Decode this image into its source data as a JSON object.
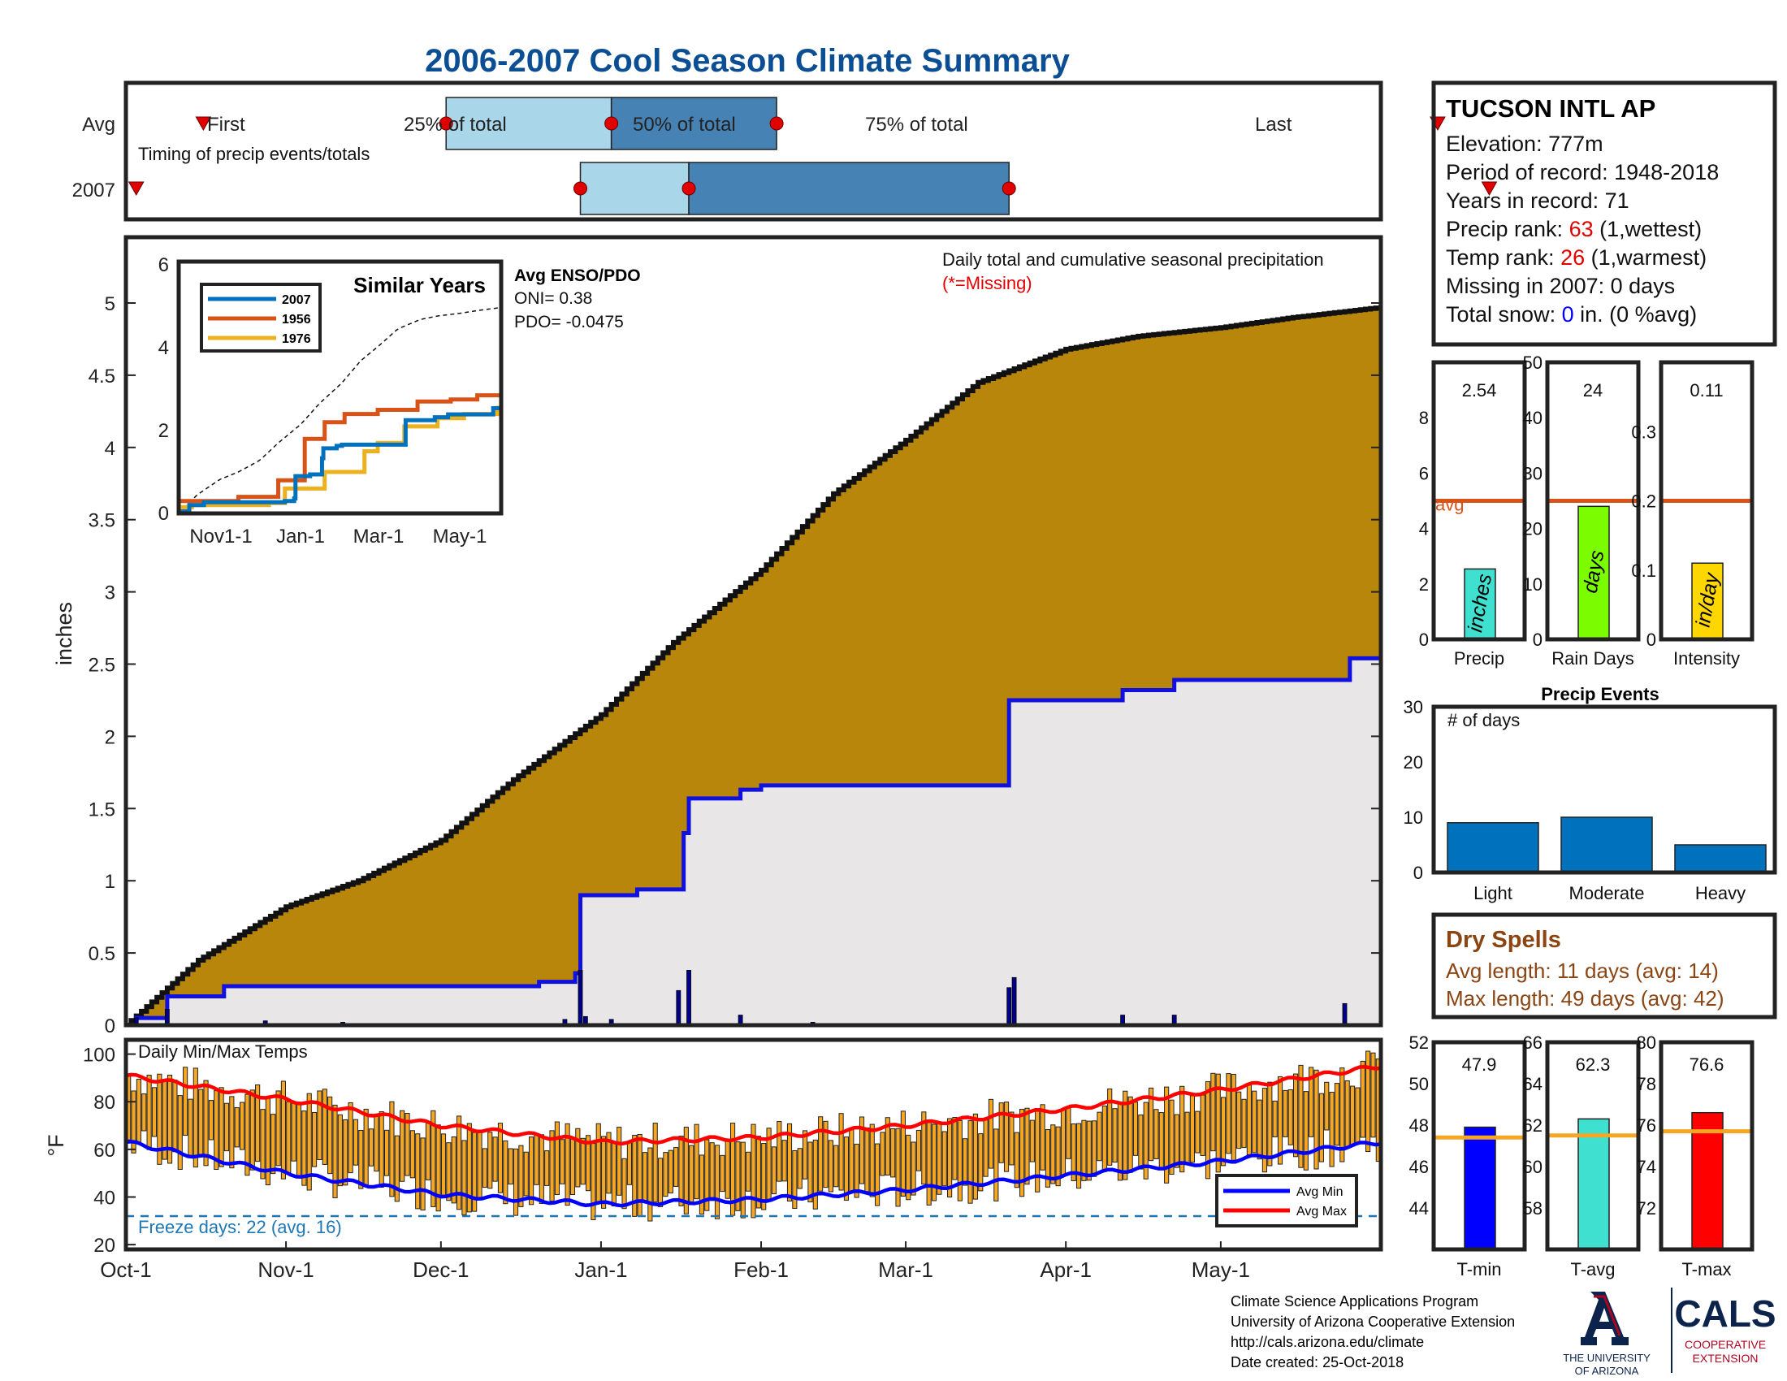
{
  "title": "2006-2007 Cool Season Climate Summary",
  "colors": {
    "title": "#0b4e94",
    "cum_2007_fill": "#e8e6e6",
    "cum_avg_fill": "#b8860b",
    "line_2007": "#1010e0",
    "temp_bar": "#f5a623",
    "avg_min": "#0000ff",
    "avg_max": "#ff0000",
    "freeze_line": "#1f77b4",
    "light_blue": "#a9d6e8",
    "steel_blue": "#4682b4",
    "marker_red": "#e00000",
    "avg_line": "#d95319"
  },
  "timing": {
    "row_labels": [
      "Avg",
      "2007"
    ],
    "first_label": "First",
    "last_label": "Last",
    "pct25_label": "25% of total",
    "pct50_label": "50% of total",
    "pct75_label": "75% of total",
    "caption": "Timing of precip events/totals",
    "avg": {
      "first": "Oct-16",
      "p25": "Dec-02",
      "p50": "Jan-03",
      "p75": "Feb-04",
      "last": "Jun-12"
    },
    "y2007": {
      "first": "Oct-03",
      "p25": "Dec-28",
      "p50": "Jan-18",
      "p75": "Mar-21",
      "last": "Jun-22"
    }
  },
  "main": {
    "annotation": "Daily total and cumulative seasonal precipitation",
    "missing_note": "(*=Missing)",
    "ylabel": "inches",
    "yticks": [
      "0",
      "0.5",
      "1",
      "1.5",
      "2",
      "2.5",
      "3",
      "3.5",
      "4",
      "4.5",
      "5"
    ]
  },
  "months": [
    "Oct-1",
    "Nov-1",
    "Dec-1",
    "Jan-1",
    "Feb-1",
    "Mar-1",
    "Apr-1",
    "May-1"
  ],
  "inset": {
    "title": "Similar Years",
    "legend": [
      "2007",
      "1956",
      "1976"
    ],
    "colors": [
      "#0072bd",
      "#d95319",
      "#edb120"
    ],
    "xticks": [
      "Nov1-1",
      "Jan-1",
      "Mar-1",
      "May-1"
    ],
    "yticks": [
      "0",
      "2",
      "4",
      "6"
    ],
    "enso_title": "Avg ENSO/PDO",
    "oni": "ONI= 0.38",
    "pdo": "PDO= -0.0475"
  },
  "temps": {
    "label": "Daily Min/Max Temps",
    "ylabel": "°F",
    "yticks": [
      "20",
      "40",
      "60",
      "80",
      "100"
    ],
    "freeze_text": "Freeze days: 22 (avg. 16)",
    "legend_min": "Avg Min",
    "legend_max": "Avg Max"
  },
  "station": {
    "name": "TUCSON INTL AP",
    "elevation": "Elevation: 777m",
    "period": "Period of record: 1948-2018",
    "years": "Years in record: 71",
    "precip_rank_label": "Precip rank: ",
    "precip_rank": "63",
    "precip_rank_tail": " (1,wettest)",
    "temp_rank_label": "Temp rank: ",
    "temp_rank": "26",
    "temp_rank_tail": " (1,warmest)",
    "missing": "Missing in 2007: 0 days",
    "snow_label": "Total snow: ",
    "snow_value": "0",
    "snow_tail": " in. (0 %avg)"
  },
  "precip_panels": [
    {
      "value_text": "2.54",
      "value": 2.54,
      "avg": 5.0,
      "ymax": 10,
      "yticks": [
        "0",
        "2",
        "4",
        "6",
        "8"
      ],
      "unit": "inches",
      "label": "Precip",
      "color": "#40e0d0",
      "avg_label": "avg"
    },
    {
      "value_text": "24",
      "value": 24,
      "avg": 25,
      "ymax": 50,
      "yticks": [
        "0",
        "10",
        "20",
        "30",
        "40",
        "50"
      ],
      "unit": "days",
      "label": "Rain Days",
      "color": "#7cfc00"
    },
    {
      "value_text": "0.11",
      "value": 0.11,
      "avg": 0.2,
      "ymax": 0.4,
      "yticks": [
        "0",
        "0.1",
        "0.2",
        "0.3"
      ],
      "unit": "in/day",
      "label": "Intensity",
      "color": "#ffd700"
    }
  ],
  "precip_events": {
    "title": "Precip Events",
    "ylabel_note": "# of days",
    "categories": [
      "Light",
      "Moderate",
      "Heavy"
    ],
    "values": [
      9,
      10,
      5
    ],
    "yticks": [
      "0",
      "10",
      "20",
      "30"
    ]
  },
  "dry_spells": {
    "title": "Dry Spells",
    "avg_length": "Avg length: 11 days (avg: 14)",
    "max_length": "Max length: 49 days (avg: 42)"
  },
  "temp_panels": [
    {
      "value_text": "47.9",
      "value": 47.9,
      "avg": 47.4,
      "ymin": 42,
      "ymax": 52,
      "yticks": [
        "44",
        "46",
        "48",
        "50",
        "52"
      ],
      "label": "T-min",
      "color": "#0000ff"
    },
    {
      "value_text": "62.3",
      "value": 62.3,
      "avg": 61.5,
      "ymin": 56,
      "ymax": 66,
      "yticks": [
        "58",
        "60",
        "62",
        "64",
        "66"
      ],
      "label": "T-avg",
      "color": "#40e0d0"
    },
    {
      "value_text": "76.6",
      "value": 76.6,
      "avg": 75.7,
      "ymin": 70,
      "ymax": 80,
      "yticks": [
        "72",
        "74",
        "76",
        "78",
        "80"
      ],
      "label": "T-max",
      "color": "#ff0000"
    }
  ],
  "footer": {
    "line1": "Climate Science Applications Program",
    "line2": "University of Arizona Cooperative Extension",
    "line3": "http://cals.arizona.edu/climate",
    "line4": " Date created: 25-Oct-2018",
    "ua1": "THE UNIVERSITY",
    "ua2": "OF ARIZONA",
    "cals": "CALS",
    "coop1": "COOPERATIVE",
    "coop2": "EXTENSION"
  },
  "chart_data": {
    "type": "area",
    "title": "2006-2007 Cool Season Climate Summary",
    "ylabel": "inches",
    "ylim": [
      0,
      5.4
    ],
    "x_months": [
      "Oct-1",
      "Nov-1",
      "Dec-1",
      "Jan-1",
      "Feb-1",
      "Mar-1",
      "Apr-1",
      "May-1"
    ],
    "series": [
      {
        "name": "Avg cumulative",
        "x": [
          "Oct-1",
          "Oct-15",
          "Nov-1",
          "Nov-15",
          "Dec-1",
          "Dec-15",
          "Jan-1",
          "Jan-15",
          "Feb-1",
          "Feb-15",
          "Mar-1",
          "Mar-15",
          "Apr-1",
          "Apr-15",
          "May-1",
          "May-15",
          "Jun-1"
        ],
        "values": [
          0.0,
          0.45,
          0.82,
          1.0,
          1.28,
          1.7,
          2.15,
          2.65,
          3.15,
          3.68,
          4.05,
          4.45,
          4.68,
          4.77,
          4.83,
          4.9,
          4.97
        ]
      },
      {
        "name": "2007 cumulative",
        "x": [
          "Oct-1",
          "Oct-3",
          "Oct-9",
          "Oct-20",
          "Dec-20",
          "Dec-27",
          "Dec-28",
          "Jan-8",
          "Jan-17",
          "Jan-18",
          "Jan-28",
          "Feb-1",
          "Mar-20",
          "Mar-21",
          "Apr-12",
          "Apr-22",
          "May-25",
          "May-26",
          "Jun-1"
        ],
        "values": [
          0.0,
          0.05,
          0.2,
          0.27,
          0.3,
          0.36,
          0.9,
          0.94,
          1.33,
          1.57,
          1.63,
          1.66,
          1.66,
          2.25,
          2.32,
          2.39,
          2.39,
          2.54,
          2.54
        ]
      }
    ],
    "daily_precip": [
      {
        "x": "Oct-3",
        "value": 0.05
      },
      {
        "x": "Oct-9",
        "value": 0.11
      },
      {
        "x": "Oct-28",
        "value": 0.03
      },
      {
        "x": "Nov-12",
        "value": 0.02
      },
      {
        "x": "Dec-25",
        "value": 0.04
      },
      {
        "x": "Dec-28",
        "value": 0.38
      },
      {
        "x": "Dec-29",
        "value": 0.06
      },
      {
        "x": "Jan-3",
        "value": 0.04
      },
      {
        "x": "Jan-16",
        "value": 0.24
      },
      {
        "x": "Jan-18",
        "value": 0.38
      },
      {
        "x": "Jan-28",
        "value": 0.07
      },
      {
        "x": "Feb-11",
        "value": 0.02
      },
      {
        "x": "Mar-21",
        "value": 0.26
      },
      {
        "x": "Mar-22",
        "value": 0.33
      },
      {
        "x": "Apr-12",
        "value": 0.07
      },
      {
        "x": "Apr-22",
        "value": 0.07
      },
      {
        "x": "May-25",
        "value": 0.15
      }
    ],
    "temps": {
      "ylim": [
        18,
        106
      ],
      "avg_max": {
        "x": [
          "Oct-1",
          "Nov-1",
          "Dec-1",
          "Jan-1",
          "Feb-1",
          "Mar-1",
          "Apr-1",
          "May-1",
          "Jun-1"
        ],
        "values": [
          91,
          81,
          70,
          63,
          65,
          70,
          77,
          85,
          95
        ]
      },
      "avg_min": {
        "x": [
          "Oct-1",
          "Nov-1",
          "Dec-1",
          "Jan-1",
          "Feb-1",
          "Mar-1",
          "Apr-1",
          "May-1",
          "Jun-1"
        ],
        "values": [
          63,
          50,
          41,
          37,
          39,
          43,
          49,
          55,
          63
        ]
      },
      "freeze_line": 32
    }
  }
}
